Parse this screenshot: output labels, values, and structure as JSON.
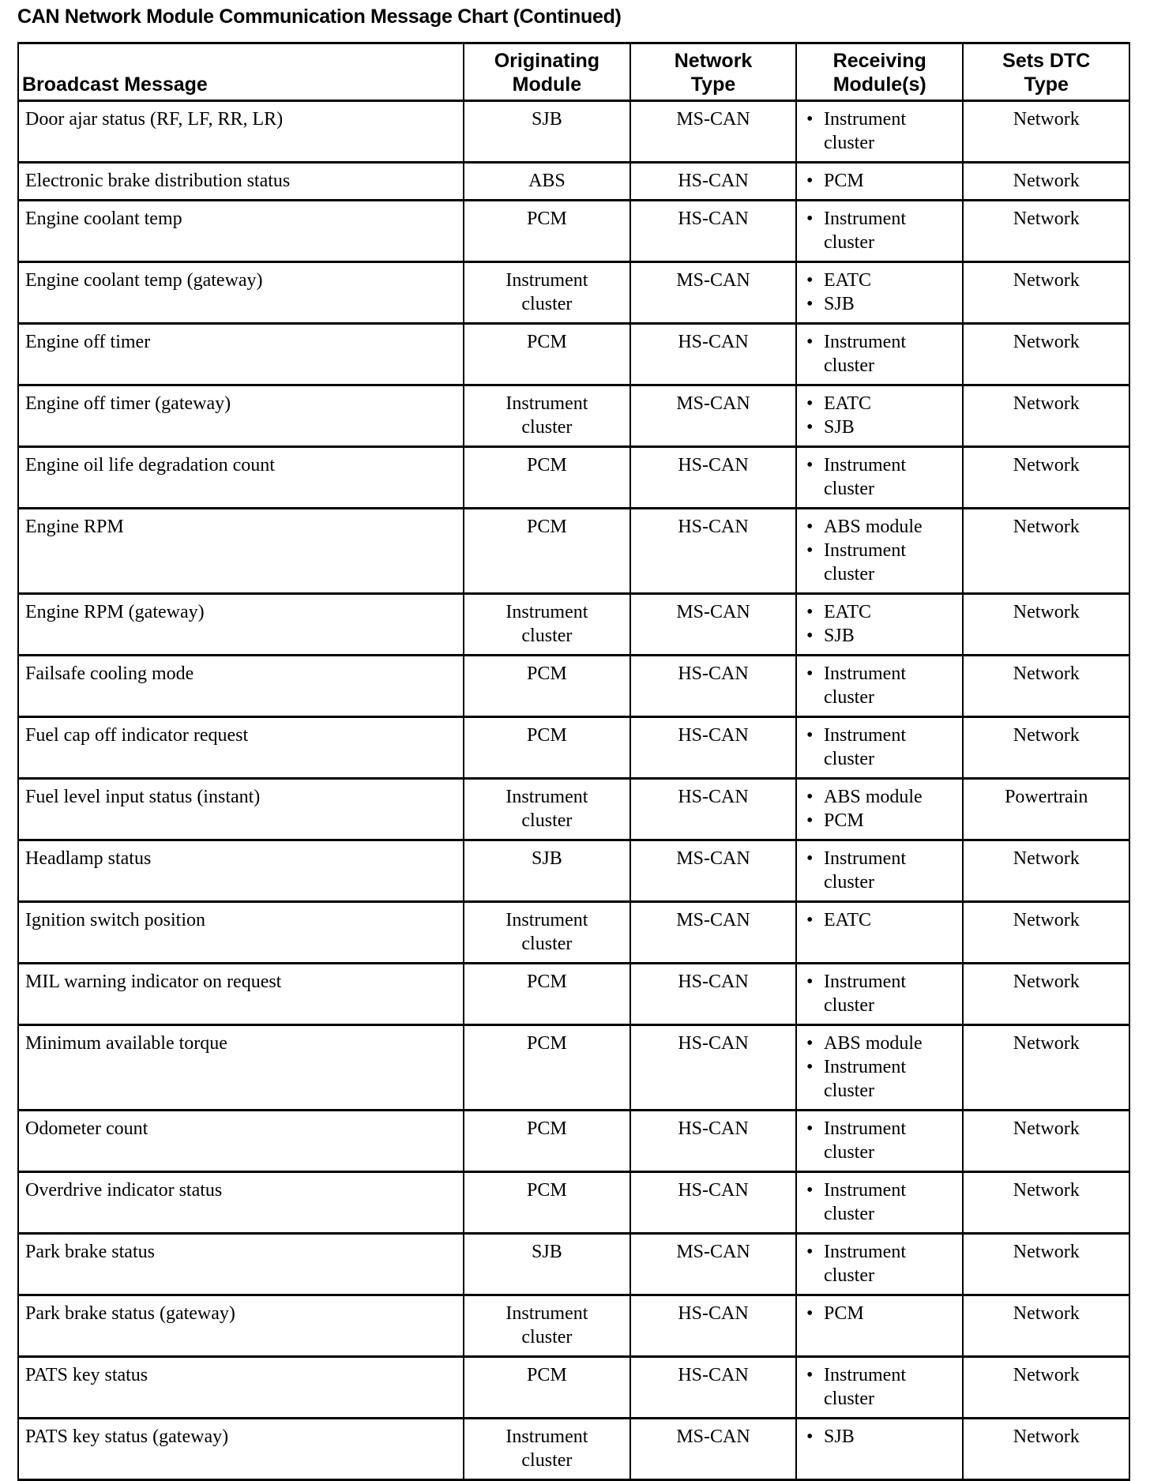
{
  "title": "CAN Network Module Communication Message Chart (Continued)",
  "headers": {
    "message": "Broadcast Message",
    "originating": "Originating Module",
    "network": "Network Type",
    "receiving": "Receiving Module(s)",
    "dtc": "Sets DTC Type"
  },
  "rows": [
    {
      "message": "Door ajar status (RF, LF, RR, LR)",
      "originating": "SJB",
      "network": "MS-CAN",
      "receiving": [
        "Instrument cluster"
      ],
      "dtc": "Network"
    },
    {
      "message": "Electronic brake distribution status",
      "originating": "ABS",
      "network": "HS-CAN",
      "receiving": [
        "PCM"
      ],
      "dtc": "Network"
    },
    {
      "message": "Engine coolant temp",
      "originating": "PCM",
      "network": "HS-CAN",
      "receiving": [
        "Instrument cluster"
      ],
      "dtc": "Network"
    },
    {
      "message": "Engine coolant temp (gateway)",
      "originating": "Instrument cluster",
      "network": "MS-CAN",
      "receiving": [
        "EATC",
        "SJB"
      ],
      "dtc": "Network"
    },
    {
      "message": "Engine off timer",
      "originating": "PCM",
      "network": "HS-CAN",
      "receiving": [
        "Instrument cluster"
      ],
      "dtc": "Network"
    },
    {
      "message": "Engine off timer (gateway)",
      "originating": "Instrument cluster",
      "network": "MS-CAN",
      "receiving": [
        "EATC",
        "SJB"
      ],
      "dtc": "Network"
    },
    {
      "message": "Engine oil life degradation count",
      "originating": "PCM",
      "network": "HS-CAN",
      "receiving": [
        "Instrument cluster"
      ],
      "dtc": "Network"
    },
    {
      "message": "Engine RPM",
      "originating": "PCM",
      "network": "HS-CAN",
      "receiving": [
        "ABS module",
        "Instrument cluster"
      ],
      "dtc": "Network"
    },
    {
      "message": "Engine RPM (gateway)",
      "originating": "Instrument cluster",
      "network": "MS-CAN",
      "receiving": [
        "EATC",
        "SJB"
      ],
      "dtc": "Network"
    },
    {
      "message": "Failsafe cooling mode",
      "originating": "PCM",
      "network": "HS-CAN",
      "receiving": [
        "Instrument cluster"
      ],
      "dtc": "Network"
    },
    {
      "message": "Fuel cap off indicator request",
      "originating": "PCM",
      "network": "HS-CAN",
      "receiving": [
        "Instrument cluster"
      ],
      "dtc": "Network"
    },
    {
      "message": "Fuel level input status (instant)",
      "originating": "Instrument cluster",
      "network": "HS-CAN",
      "receiving": [
        "ABS module",
        "PCM"
      ],
      "dtc": "Powertrain"
    },
    {
      "message": "Headlamp status",
      "originating": "SJB",
      "network": "MS-CAN",
      "receiving": [
        "Instrument cluster"
      ],
      "dtc": "Network"
    },
    {
      "message": "Ignition switch position",
      "originating": "Instrument cluster",
      "network": "MS-CAN",
      "receiving": [
        "EATC"
      ],
      "dtc": "Network"
    },
    {
      "message": "MIL warning indicator on request",
      "originating": "PCM",
      "network": "HS-CAN",
      "receiving": [
        "Instrument cluster"
      ],
      "dtc": "Network"
    },
    {
      "message": "Minimum available torque",
      "originating": "PCM",
      "network": "HS-CAN",
      "receiving": [
        "ABS module",
        "Instrument cluster"
      ],
      "dtc": "Network"
    },
    {
      "message": "Odometer count",
      "originating": "PCM",
      "network": "HS-CAN",
      "receiving": [
        "Instrument cluster"
      ],
      "dtc": "Network"
    },
    {
      "message": "Overdrive indicator status",
      "originating": "PCM",
      "network": "HS-CAN",
      "receiving": [
        "Instrument cluster"
      ],
      "dtc": "Network"
    },
    {
      "message": "Park brake status",
      "originating": "SJB",
      "network": "MS-CAN",
      "receiving": [
        "Instrument cluster"
      ],
      "dtc": "Network"
    },
    {
      "message": "Park brake status (gateway)",
      "originating": "Instrument cluster",
      "network": "HS-CAN",
      "receiving": [
        "PCM"
      ],
      "dtc": "Network"
    },
    {
      "message": "PATS key status",
      "originating": "PCM",
      "network": "HS-CAN",
      "receiving": [
        "Instrument cluster"
      ],
      "dtc": "Network"
    },
    {
      "message": "PATS key status (gateway)",
      "originating": "Instrument cluster",
      "network": "MS-CAN",
      "receiving": [
        "SJB"
      ],
      "dtc": "Network"
    }
  ]
}
